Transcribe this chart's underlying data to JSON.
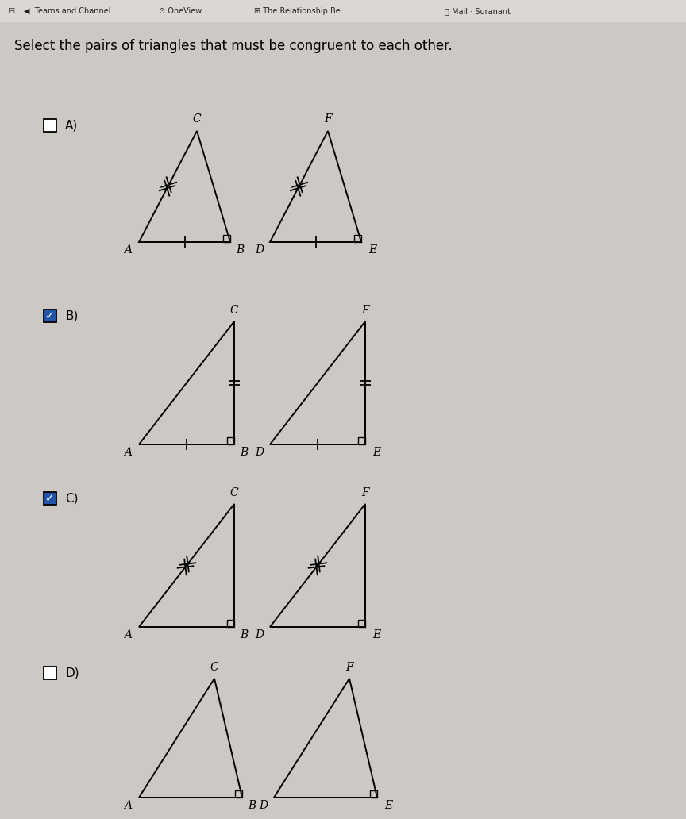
{
  "title": "Select the pairs of triangles that must be congruent to each other.",
  "bg_color": "#ccc9c5",
  "header_bg": "#dbd7d3",
  "options": [
    "A)",
    "B)",
    "C)",
    "D)"
  ],
  "checked": [
    false,
    true,
    true,
    false
  ],
  "checkbox_color_checked": "#2255aa",
  "checkbox_color_unchecked": "white",
  "text_color": "#111111",
  "triangle_color": "black",
  "lw": 1.4
}
